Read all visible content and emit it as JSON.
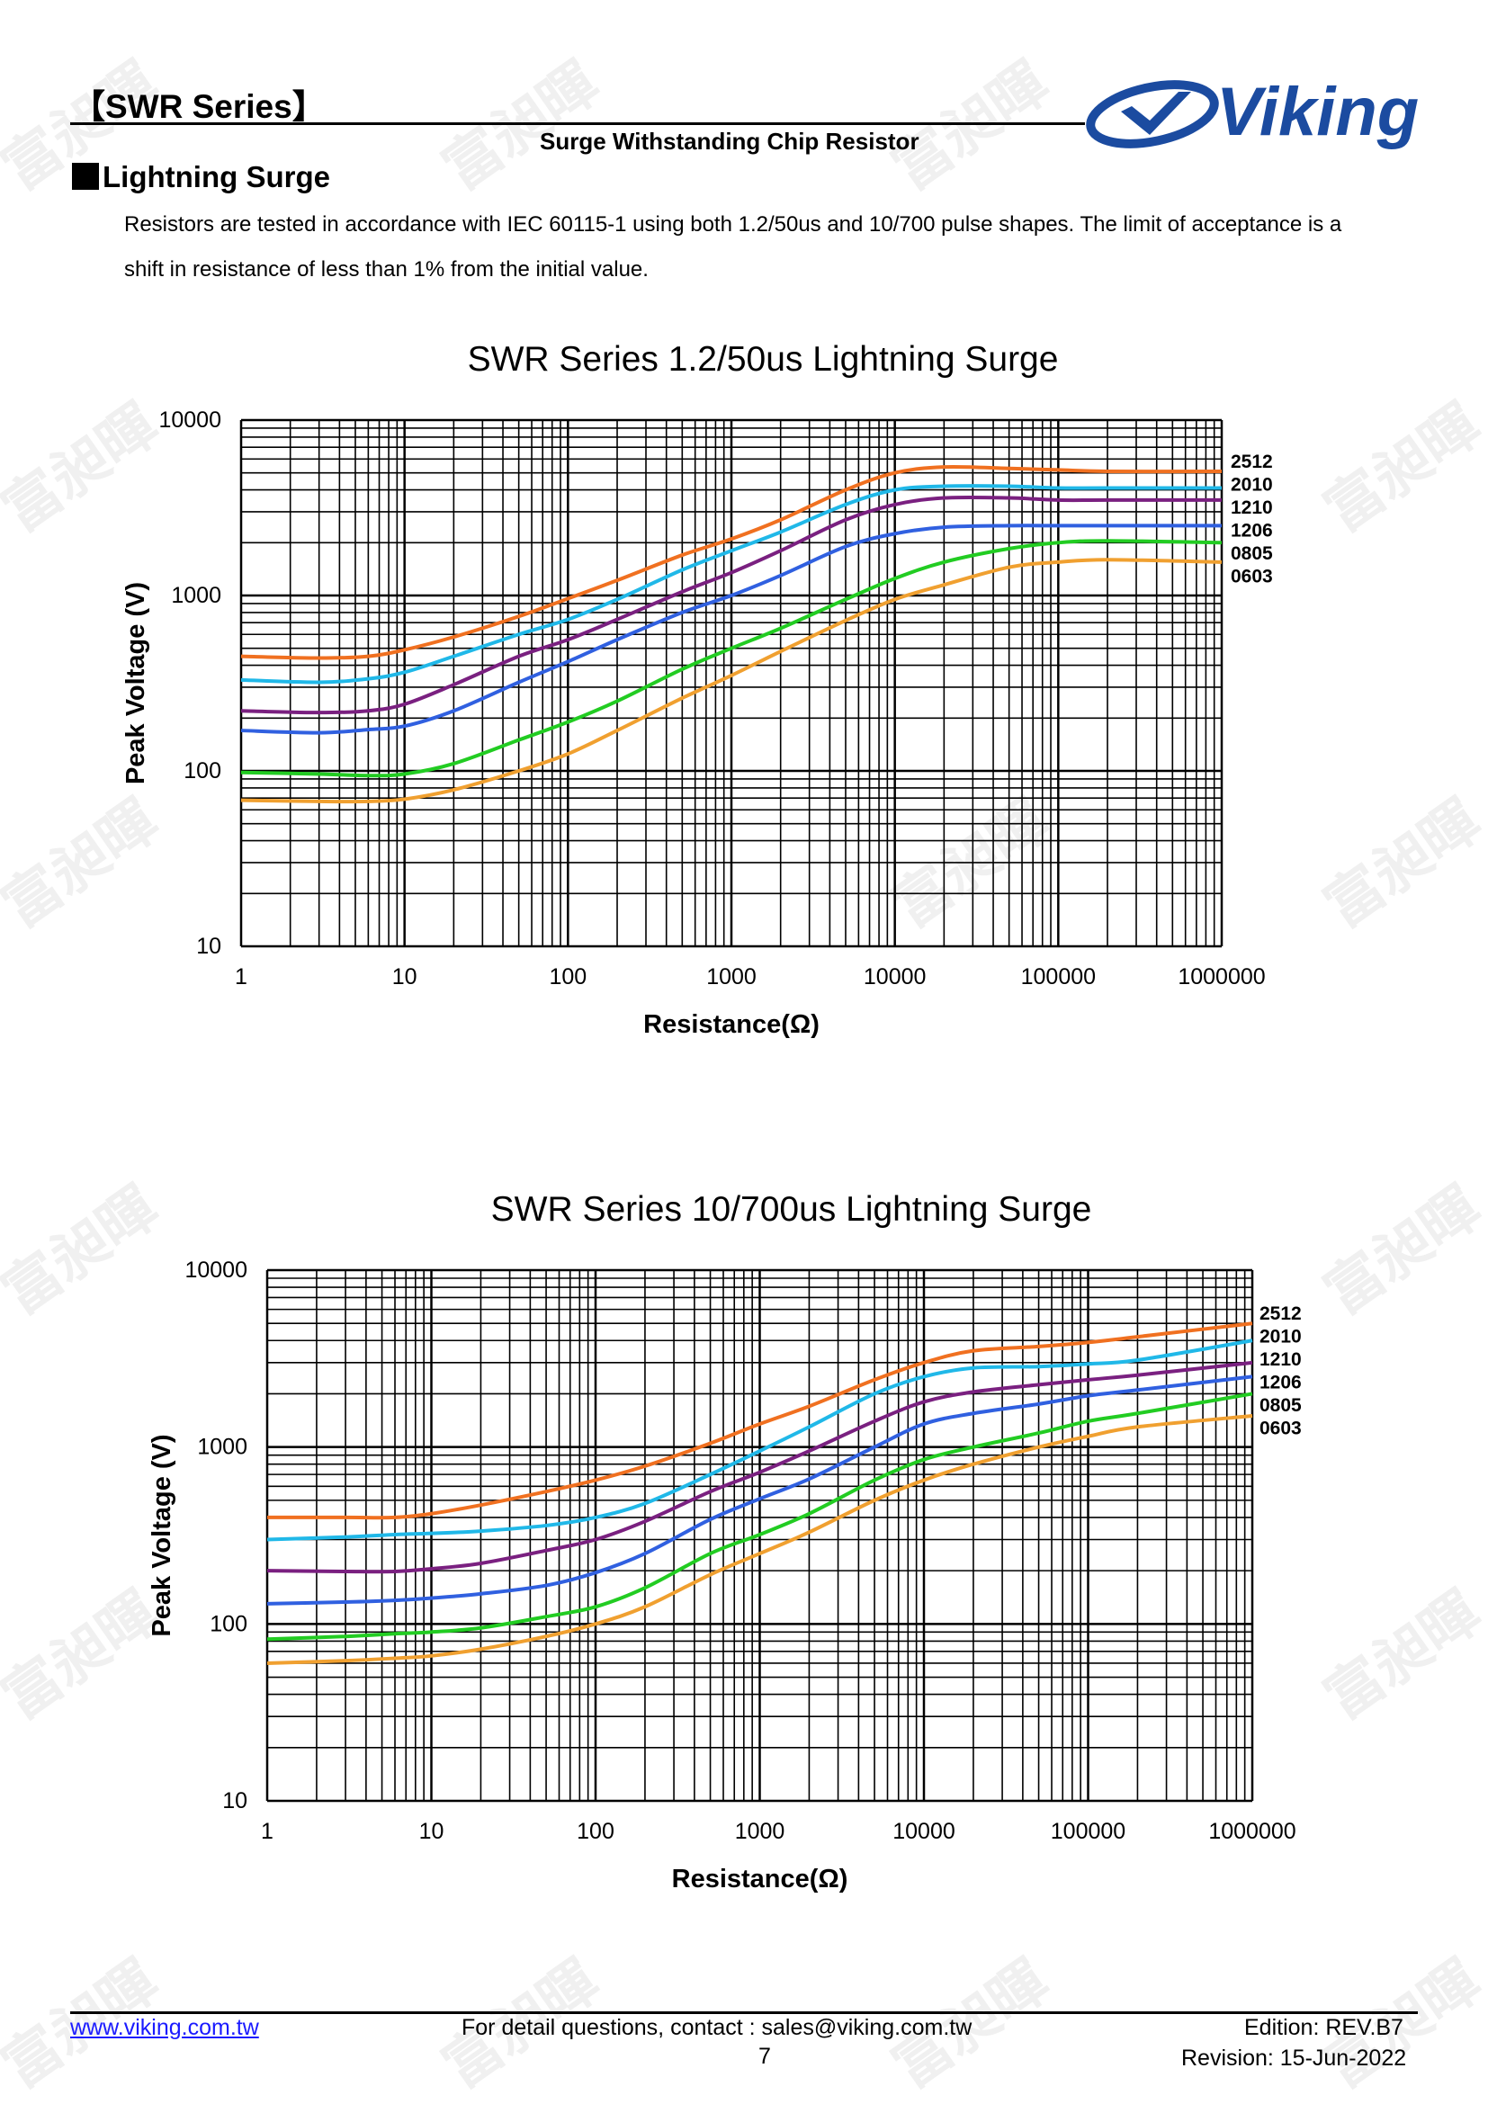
{
  "header": {
    "series": "【SWR Series】",
    "subtitle": "Surge Withstanding Chip Resistor",
    "logo_text": "Viking",
    "logo_color": "#1b4ba0"
  },
  "section": {
    "title": "Lightning Surge",
    "paragraph_line1": "Resistors are tested in accordance with IEC 60115-1 using both 1.2/50us and 10/700 pulse shapes. The limit of acceptance is a",
    "paragraph_line2": "shift in resistance of less than 1% from the initial value."
  },
  "watermark": "富昶暉",
  "chart_data": [
    {
      "type": "line",
      "title": "SWR Series 1.2/50us Lightning Surge",
      "xlabel": "Resistance(Ω)",
      "ylabel": "Peak Voltage (V)",
      "xscale": "log",
      "yscale": "log",
      "xlim": [
        1,
        1000000
      ],
      "ylim": [
        10,
        10000
      ],
      "xticks": [
        "1",
        "10",
        "100",
        "1000",
        "10000",
        "100000",
        "1000000"
      ],
      "yticks": [
        "10",
        "100",
        "1000",
        "10000"
      ],
      "grid": true,
      "legend": "right",
      "x": [
        1,
        3,
        6,
        10,
        20,
        50,
        100,
        200,
        500,
        1000,
        2000,
        5000,
        10000,
        20000,
        50000,
        100000,
        200000,
        1000000
      ],
      "series": [
        {
          "name": "2512",
          "color": "#f07020",
          "values": [
            450,
            440,
            450,
            490,
            580,
            760,
            960,
            1220,
            1700,
            2100,
            2700,
            4000,
            5000,
            5400,
            5300,
            5200,
            5100,
            5100
          ]
        },
        {
          "name": "2010",
          "color": "#20b8e8",
          "values": [
            330,
            320,
            335,
            365,
            450,
            600,
            730,
            950,
            1400,
            1800,
            2300,
            3300,
            4000,
            4200,
            4200,
            4100,
            4100,
            4100
          ]
        },
        {
          "name": "1210",
          "color": "#7a2080",
          "values": [
            220,
            215,
            220,
            240,
            310,
            450,
            560,
            730,
            1050,
            1350,
            1800,
            2700,
            3300,
            3600,
            3600,
            3500,
            3500,
            3500
          ]
        },
        {
          "name": "1206",
          "color": "#3060e0",
          "values": [
            170,
            165,
            172,
            180,
            220,
            320,
            420,
            560,
            800,
            1000,
            1300,
            1900,
            2250,
            2450,
            2500,
            2500,
            2500,
            2500
          ]
        },
        {
          "name": "0805",
          "color": "#22cc22",
          "values": [
            98,
            96,
            94,
            96,
            110,
            150,
            190,
            250,
            380,
            500,
            650,
            950,
            1250,
            1550,
            1850,
            2000,
            2050,
            2000
          ]
        },
        {
          "name": "0603",
          "color": "#f0a030",
          "values": [
            68,
            67,
            67,
            69,
            78,
            100,
            125,
            170,
            260,
            350,
            480,
            720,
            950,
            1150,
            1450,
            1550,
            1600,
            1550
          ]
        }
      ]
    },
    {
      "type": "line",
      "title": "SWR Series 10/700us Lightning Surge",
      "xlabel": "Resistance(Ω)",
      "ylabel": "Peak Voltage (V)",
      "xscale": "log",
      "yscale": "log",
      "xlim": [
        1,
        1000000
      ],
      "ylim": [
        10,
        10000
      ],
      "xticks": [
        "1",
        "10",
        "100",
        "1000",
        "10000",
        "100000",
        "1000000"
      ],
      "yticks": [
        "10",
        "100",
        "1000",
        "10000"
      ],
      "grid": true,
      "legend": "right",
      "x": [
        1,
        3,
        6,
        10,
        20,
        50,
        100,
        200,
        500,
        1000,
        2000,
        5000,
        10000,
        20000,
        50000,
        100000,
        200000,
        1000000
      ],
      "series": [
        {
          "name": "2512",
          "color": "#f07020",
          "values": [
            400,
            400,
            400,
            420,
            470,
            560,
            650,
            780,
            1050,
            1350,
            1700,
            2400,
            3000,
            3500,
            3700,
            3900,
            4200,
            5000
          ]
        },
        {
          "name": "2010",
          "color": "#20b8e8",
          "values": [
            300,
            310,
            320,
            325,
            335,
            360,
            400,
            480,
            700,
            950,
            1300,
            2000,
            2500,
            2800,
            2850,
            2950,
            3100,
            4000
          ]
        },
        {
          "name": "1210",
          "color": "#7a2080",
          "values": [
            200,
            198,
            198,
            205,
            220,
            260,
            300,
            380,
            560,
            720,
            950,
            1400,
            1800,
            2050,
            2250,
            2400,
            2550,
            3000
          ]
        },
        {
          "name": "1206",
          "color": "#3060e0",
          "values": [
            130,
            133,
            136,
            140,
            148,
            165,
            195,
            250,
            390,
            510,
            660,
            1000,
            1350,
            1550,
            1750,
            1950,
            2100,
            2500
          ]
        },
        {
          "name": "0805",
          "color": "#22cc22",
          "values": [
            82,
            85,
            88,
            90,
            95,
            110,
            125,
            160,
            250,
            320,
            420,
            650,
            850,
            1000,
            1200,
            1400,
            1550,
            2000
          ]
        },
        {
          "name": "0603",
          "color": "#f0a030",
          "values": [
            60,
            62,
            64,
            66,
            72,
            85,
            100,
            125,
            190,
            250,
            330,
            500,
            650,
            800,
            1000,
            1150,
            1300,
            1500
          ]
        }
      ]
    }
  ],
  "footer": {
    "website": "www.viking.com.tw",
    "contact": "For detail questions, contact : sales@viking.com.tw",
    "page": "7",
    "edition": "Edition: REV.B7",
    "revision": "Revision: 15-Jun-2022"
  }
}
